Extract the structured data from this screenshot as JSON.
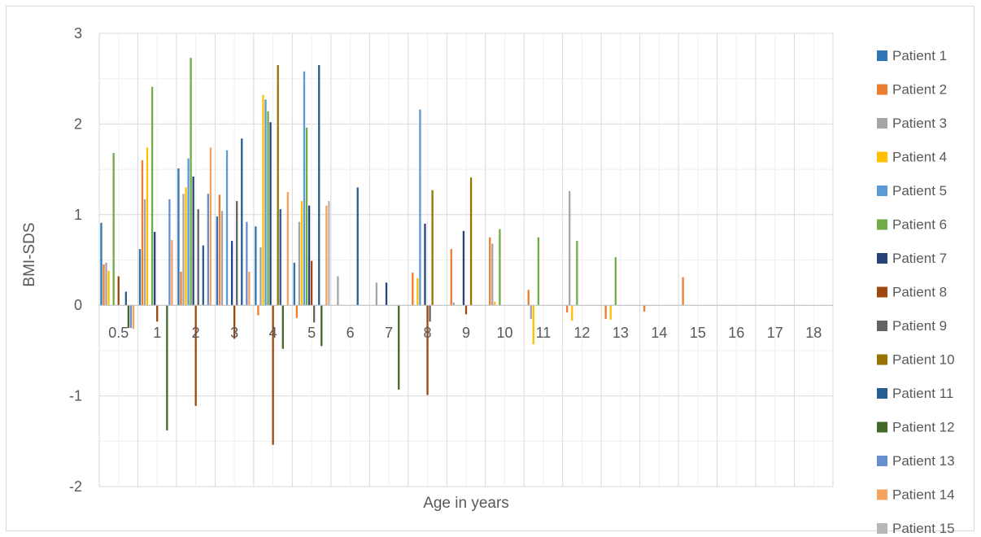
{
  "chart_data": {
    "type": "bar",
    "title": "",
    "xlabel": "Age in years",
    "ylabel": "BMI-SDS",
    "ylim": [
      -2,
      3
    ],
    "yticks": [
      3,
      2,
      1,
      0,
      -1,
      -2
    ],
    "grid": true,
    "legend_position": "right",
    "categories": [
      "0.5",
      "1",
      "2",
      "3",
      "4",
      "5",
      "6",
      "7",
      "8",
      "9",
      "10",
      "11",
      "12",
      "13",
      "14",
      "15",
      "16",
      "17",
      "18"
    ],
    "series": [
      {
        "name": "Patient 1",
        "color": "#2e75b6",
        "values": [
          0.91,
          0.62,
          1.51,
          0.98,
          0.87,
          0.47,
          null,
          null,
          null,
          null,
          null,
          null,
          null,
          null,
          null,
          null,
          null,
          null,
          null
        ]
      },
      {
        "name": "Patient 2",
        "color": "#ed7d31",
        "values": [
          0.45,
          1.6,
          0.37,
          1.22,
          -0.11,
          -0.14,
          null,
          null,
          0.36,
          0.62,
          0.75,
          0.17,
          -0.08,
          -0.15,
          -0.07,
          0.31,
          null,
          null,
          null
        ]
      },
      {
        "name": "Patient 3",
        "color": "#a5a5a5",
        "values": [
          0.47,
          1.17,
          1.23,
          1.04,
          0.64,
          0.92,
          0.32,
          0.25,
          null,
          0.03,
          0.68,
          -0.15,
          1.26,
          null,
          null,
          null,
          null,
          null,
          null
        ]
      },
      {
        "name": "Patient 4",
        "color": "#ffc000",
        "values": [
          0.38,
          1.74,
          1.3,
          null,
          2.32,
          1.15,
          null,
          null,
          0.3,
          null,
          0.04,
          -0.43,
          -0.17,
          -0.16,
          null,
          null,
          null,
          null,
          null
        ]
      },
      {
        "name": "Patient 5",
        "color": "#5b9bd5",
        "values": [
          null,
          null,
          1.62,
          1.71,
          2.27,
          2.58,
          null,
          null,
          2.16,
          null,
          null,
          null,
          null,
          null,
          null,
          null,
          null,
          null,
          null
        ]
      },
      {
        "name": "Patient 6",
        "color": "#70ad47",
        "values": [
          1.68,
          2.41,
          2.73,
          null,
          2.14,
          1.96,
          null,
          null,
          null,
          null,
          0.84,
          0.75,
          0.71,
          0.53,
          null,
          null,
          null,
          null,
          null
        ]
      },
      {
        "name": "Patient 7",
        "color": "#264478",
        "values": [
          null,
          0.81,
          1.42,
          0.71,
          2.02,
          1.1,
          null,
          0.25,
          0.9,
          0.82,
          null,
          null,
          null,
          null,
          null,
          null,
          null,
          null,
          null
        ]
      },
      {
        "name": "Patient 8",
        "color": "#9e480e",
        "values": [
          0.32,
          -0.18,
          -1.11,
          -0.37,
          -1.54,
          0.49,
          null,
          null,
          -0.99,
          -0.1,
          null,
          null,
          null,
          null,
          null,
          null,
          null,
          null,
          null
        ]
      },
      {
        "name": "Patient 9",
        "color": "#636363",
        "values": [
          null,
          null,
          1.06,
          1.15,
          null,
          -0.19,
          null,
          null,
          -0.18,
          null,
          null,
          null,
          null,
          null,
          null,
          null,
          null,
          null,
          null
        ]
      },
      {
        "name": "Patient 10",
        "color": "#997300",
        "values": [
          null,
          null,
          null,
          null,
          2.65,
          null,
          null,
          null,
          1.27,
          1.41,
          null,
          null,
          null,
          null,
          null,
          null,
          null,
          null,
          null
        ]
      },
      {
        "name": "Patient 11",
        "color": "#255e91",
        "values": [
          0.15,
          null,
          0.66,
          1.84,
          1.06,
          2.65,
          1.3,
          null,
          null,
          null,
          null,
          null,
          null,
          null,
          null,
          null,
          null,
          null,
          null
        ]
      },
      {
        "name": "Patient 12",
        "color": "#43682b",
        "values": [
          -0.25,
          -1.38,
          null,
          null,
          -0.48,
          -0.45,
          null,
          -0.93,
          null,
          null,
          null,
          null,
          null,
          null,
          null,
          null,
          null,
          null,
          null
        ]
      },
      {
        "name": "Patient 13",
        "color": "#698ed0",
        "values": [
          -0.25,
          1.17,
          1.23,
          0.92,
          null,
          null,
          null,
          null,
          null,
          null,
          null,
          null,
          null,
          null,
          null,
          null,
          null,
          null,
          null
        ]
      },
      {
        "name": "Patient 14",
        "color": "#f4a35f",
        "values": [
          -0.26,
          0.72,
          1.74,
          0.37,
          1.25,
          1.1,
          null,
          null,
          null,
          null,
          null,
          null,
          null,
          null,
          null,
          null,
          null,
          null,
          null
        ]
      },
      {
        "name": "Patient 15",
        "color": "#b7b7b7",
        "values": [
          null,
          null,
          null,
          null,
          null,
          1.15,
          null,
          null,
          null,
          null,
          null,
          null,
          null,
          null,
          null,
          null,
          null,
          null,
          null
        ]
      }
    ]
  }
}
